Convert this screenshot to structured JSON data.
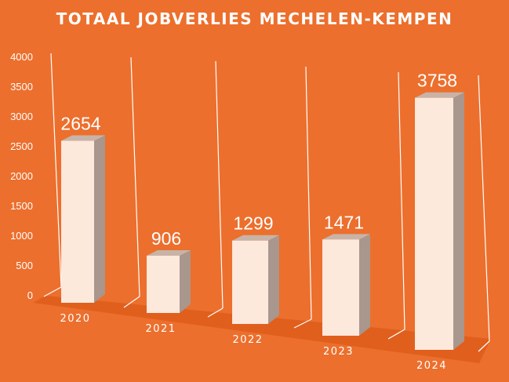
{
  "chart_data": {
    "type": "bar",
    "title": "TOTAAL JOBVERLIES MECHELEN-KEMPEN",
    "xlabel": "",
    "ylabel": "",
    "categories": [
      "2020",
      "2021",
      "2022",
      "2023",
      "2024"
    ],
    "values": [
      2654,
      906,
      1299,
      1471,
      3758
    ],
    "data_labels": [
      "2654",
      "906",
      "1299",
      "1471",
      "3758"
    ],
    "ylim": [
      0,
      4000
    ],
    "yticks": [
      "0",
      "500",
      "1000",
      "1500",
      "2000",
      "2500",
      "3000",
      "3500",
      "4000"
    ],
    "grid": false,
    "legend": "none",
    "style": "3d-perspective",
    "colors": {
      "background": "#ec6f2d",
      "bar_front": "#fde8dc",
      "bar_side": "#a9968c",
      "bar_top": "#c9b3a6",
      "floor": "#e05f1d",
      "lines": "#ffffff",
      "text": "#ffffff"
    }
  }
}
